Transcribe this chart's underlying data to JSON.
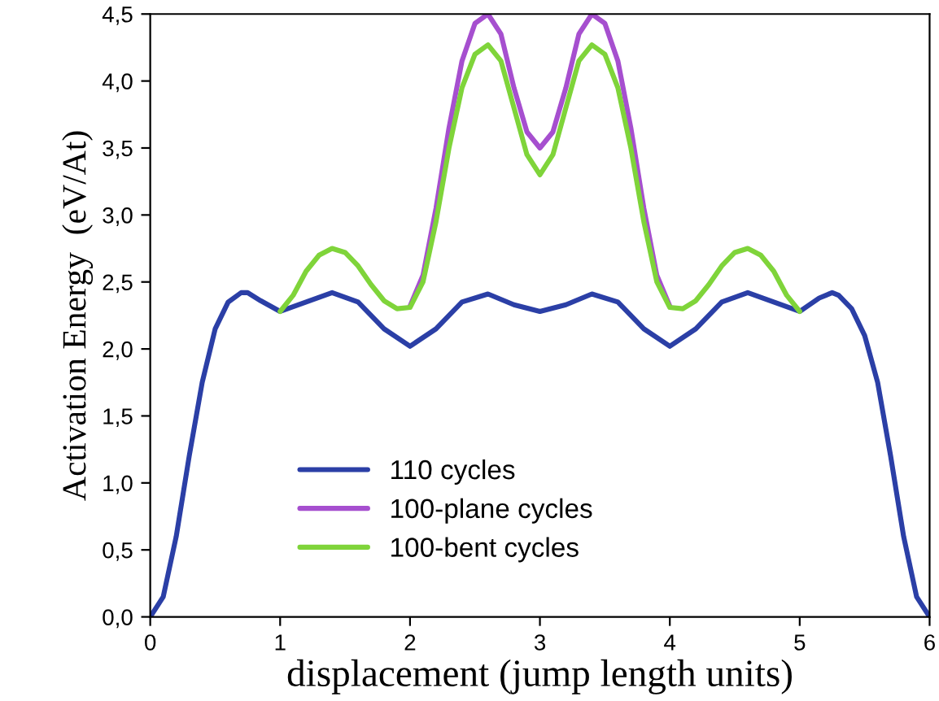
{
  "chart_data": {
    "type": "line",
    "xlabel": "displacement (jump length units)",
    "ylabel": "Activation Energy  (eV/At)",
    "xlim": [
      0,
      6
    ],
    "ylim": [
      0,
      4.5
    ],
    "xticks": [
      0,
      1,
      2,
      3,
      4,
      5,
      6
    ],
    "yticks": [
      {
        "value": 0,
        "label": "0,0"
      },
      {
        "value": 0.5,
        "label": "0,5"
      },
      {
        "value": 1,
        "label": "1,0"
      },
      {
        "value": 1.5,
        "label": "1,5"
      },
      {
        "value": 2,
        "label": "2,0"
      },
      {
        "value": 2.5,
        "label": "2,5"
      },
      {
        "value": 3,
        "label": "3,0"
      },
      {
        "value": 3.5,
        "label": "3,5"
      },
      {
        "value": 4,
        "label": "4,0"
      },
      {
        "value": 4.5,
        "label": "4,5"
      }
    ],
    "grid": false,
    "legend": "bottom",
    "marker": "none",
    "line_style": "solid",
    "series": [
      {
        "name": "110 cycles",
        "color": "#2b3fa6",
        "x": [
          0,
          0.1,
          0.2,
          0.3,
          0.4,
          0.5,
          0.6,
          0.7,
          0.75,
          0.85,
          1.0,
          1.2,
          1.4,
          1.6,
          1.8,
          2.0,
          2.2,
          2.4,
          2.6,
          2.8,
          3.0,
          3.2,
          3.4,
          3.6,
          3.8,
          4.0,
          4.2,
          4.4,
          4.6,
          4.8,
          5.0,
          5.15,
          5.25,
          5.3,
          5.4,
          5.5,
          5.6,
          5.7,
          5.8,
          5.9,
          6.0
        ],
        "values": [
          0,
          0.15,
          0.6,
          1.2,
          1.75,
          2.15,
          2.35,
          2.42,
          2.42,
          2.36,
          2.28,
          2.35,
          2.42,
          2.35,
          2.15,
          2.02,
          2.15,
          2.35,
          2.41,
          2.33,
          2.28,
          2.33,
          2.41,
          2.35,
          2.15,
          2.02,
          2.15,
          2.35,
          2.42,
          2.35,
          2.28,
          2.38,
          2.42,
          2.4,
          2.3,
          2.1,
          1.75,
          1.2,
          0.6,
          0.15,
          0
        ]
      },
      {
        "name": "100-plane cycles",
        "color": "#a64fcf",
        "x": [
          2.0,
          2.1,
          2.2,
          2.3,
          2.4,
          2.5,
          2.6,
          2.7,
          2.8,
          2.9,
          3.0,
          3.1,
          3.2,
          3.3,
          3.4,
          3.5,
          3.6,
          3.7,
          3.8,
          3.9,
          4.0
        ],
        "values": [
          2.32,
          2.55,
          3.05,
          3.65,
          4.15,
          4.43,
          4.5,
          4.35,
          3.95,
          3.62,
          3.5,
          3.62,
          3.95,
          4.35,
          4.5,
          4.43,
          4.15,
          3.65,
          3.05,
          2.55,
          2.32
        ]
      },
      {
        "name": "100-bent cycles",
        "color": "#7fd43a",
        "x": [
          1.0,
          1.1,
          1.2,
          1.3,
          1.4,
          1.5,
          1.6,
          1.7,
          1.8,
          1.9,
          2.0,
          2.1,
          2.2,
          2.3,
          2.4,
          2.5,
          2.6,
          2.7,
          2.8,
          2.9,
          3.0,
          3.1,
          3.2,
          3.3,
          3.4,
          3.5,
          3.6,
          3.7,
          3.8,
          3.9,
          4.0,
          4.1,
          4.2,
          4.3,
          4.4,
          4.5,
          4.6,
          4.7,
          4.8,
          4.9,
          5.0
        ],
        "values": [
          2.28,
          2.4,
          2.58,
          2.7,
          2.75,
          2.72,
          2.62,
          2.48,
          2.36,
          2.3,
          2.31,
          2.5,
          2.95,
          3.5,
          3.95,
          4.2,
          4.27,
          4.15,
          3.8,
          3.45,
          3.3,
          3.45,
          3.8,
          4.15,
          4.27,
          4.2,
          3.95,
          3.5,
          2.95,
          2.5,
          2.31,
          2.3,
          2.36,
          2.48,
          2.62,
          2.72,
          2.75,
          2.7,
          2.58,
          2.4,
          2.28
        ]
      }
    ]
  }
}
